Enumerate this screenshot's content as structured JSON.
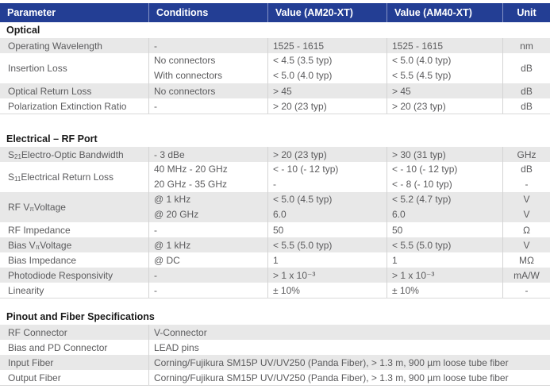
{
  "table": {
    "columns": [
      "Parameter",
      "Conditions",
      "Value (AM20-XT)",
      "Value (AM40-XT)",
      "Unit"
    ],
    "colors": {
      "header_bg": "#233e94",
      "header_text": "#ffffff",
      "row_shade": "#e8e8e8",
      "body_text": "#5b5b5d",
      "section_title_text": "#1a1a1a",
      "border": "#d9d9d9"
    },
    "sections": {
      "optical": {
        "title": "Optical",
        "rows": [
          {
            "p": "Operating Wavelength",
            "cond": [
              "-"
            ],
            "v20": [
              "1525 - 1615"
            ],
            "v40": [
              "1525 - 1615"
            ],
            "unit": [
              "nm"
            ]
          },
          {
            "p": "Insertion Loss",
            "cond": [
              "No connectors",
              "With connectors"
            ],
            "v20": [
              "< 4.5 (3.5 typ)",
              "< 5.0 (4.0 typ)"
            ],
            "v40": [
              "< 5.0 (4.0 typ)",
              "< 5.5 (4.5 typ)"
            ],
            "unit": [
              "dB"
            ]
          },
          {
            "p": "Optical Return Loss",
            "cond": [
              "No connectors"
            ],
            "v20": [
              "> 45"
            ],
            "v40": [
              "> 45"
            ],
            "unit": [
              "dB"
            ]
          },
          {
            "p": "Polarization Extinction Ratio",
            "cond": [
              "-"
            ],
            "v20": [
              "> 20 (23 typ)"
            ],
            "v40": [
              "> 20 (23 typ)"
            ],
            "unit": [
              "dB"
            ]
          }
        ]
      },
      "electrical": {
        "title": "Electrical – RF Port",
        "rows": [
          {
            "p_pre": "S",
            "p_sub": "21",
            "p_post": " Electro-Optic Bandwidth",
            "cond": [
              "- 3 dBe"
            ],
            "v20": [
              "> 20 (23 typ)"
            ],
            "v40": [
              "> 30 (31 typ)"
            ],
            "unit": [
              "GHz"
            ]
          },
          {
            "p_pre": "S",
            "p_sub": "11",
            "p_post": " Electrical Return Loss",
            "cond": [
              "40 MHz - 20 GHz",
              "20 GHz - 35 GHz"
            ],
            "v20": [
              "< - 10 (- 12 typ)",
              "-"
            ],
            "v40": [
              "< - 10 (- 12 typ)",
              "< - 8 (- 10 typ)"
            ],
            "unit": [
              "dB",
              "-"
            ]
          },
          {
            "p_pre": "RF V",
            "p_sub": "π",
            "p_post": " Voltage",
            "cond": [
              "@ 1 kHz",
              "@ 20 GHz"
            ],
            "v20": [
              "< 5.0 (4.5 typ)",
              "6.0"
            ],
            "v40": [
              "< 5.2 (4.7 typ)",
              "6.0"
            ],
            "unit": [
              "V",
              "V"
            ]
          },
          {
            "p": "RF Impedance",
            "cond": [
              "-"
            ],
            "v20": [
              "50"
            ],
            "v40": [
              "50"
            ],
            "unit": [
              "Ω"
            ]
          },
          {
            "p_pre": "Bias V",
            "p_sub": "π",
            "p_post": " Voltage",
            "cond": [
              "@ 1 kHz"
            ],
            "v20": [
              "< 5.5 (5.0 typ)"
            ],
            "v40": [
              "< 5.5 (5.0 typ)"
            ],
            "unit": [
              "V"
            ]
          },
          {
            "p": "Bias Impedance",
            "cond": [
              "@ DC"
            ],
            "v20": [
              "1"
            ],
            "v40": [
              "1"
            ],
            "unit": [
              "MΩ"
            ]
          },
          {
            "p": "Photodiode Responsivity",
            "cond": [
              "-"
            ],
            "v20": [
              "> 1 x 10⁻³"
            ],
            "v40": [
              "> 1 x 10⁻³"
            ],
            "unit": [
              "mA/W"
            ]
          },
          {
            "p": "Linearity",
            "cond": [
              "-"
            ],
            "v20": [
              "± 10%"
            ],
            "v40": [
              "± 10%"
            ],
            "unit": [
              "-"
            ]
          }
        ]
      },
      "pinout": {
        "title": "Pinout and Fiber Specifications",
        "rows": [
          {
            "p": "RF Connector",
            "value": "V-Connector"
          },
          {
            "p": "Bias and PD Connector",
            "value": "LEAD pins"
          },
          {
            "p": "Input Fiber",
            "value": "Corning/Fujikura SM15P UV/UV250 (Panda Fiber), > 1.3 m, 900 µm loose tube fiber"
          },
          {
            "p": "Output Fiber",
            "value": "Corning/Fujikura SM15P UV/UV250 (Panda Fiber), > 1.3 m, 900 µm loose tube fiber"
          }
        ]
      }
    }
  }
}
